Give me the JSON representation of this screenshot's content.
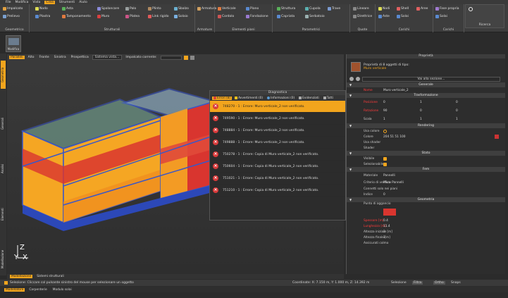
{
  "menu": [
    "File",
    "Modifica",
    "Vista",
    "Crea",
    "Strumenti",
    "Aiuto"
  ],
  "menu_active_index": 3,
  "ribbon": {
    "groups": [
      {
        "title": "Geometrico",
        "items": [
          "Impalcato",
          "Prelievo"
        ]
      },
      {
        "title": "Strutturali",
        "items": [
          "Nodo",
          "Asta",
          "Plastra",
          "Tamponamento",
          "Spalancare",
          "Palo",
          "Muro",
          "Plinto",
          "Platea",
          "Link rigido",
          "Sbalzo",
          "Solaio"
        ]
      },
      {
        "title": "Armature",
        "items": [
          "Armatura"
        ]
      },
      {
        "title": "Elementi piani",
        "items": [
          "Verticale",
          "Piano",
          "Cordolo",
          "Fondazione"
        ]
      },
      {
        "title": "Parametrici",
        "items": [
          "Struttura",
          "Cupola",
          "Trave",
          "Capriata",
          "Serbatoio"
        ]
      },
      {
        "title": "Quote",
        "items": [
          "Lineare",
          "Direttrice"
        ]
      },
      {
        "title": "Carichi",
        "items": [
          "Nodi",
          "Shell",
          "Aree",
          "Aste",
          "Solai"
        ]
      },
      {
        "title": "Carichi",
        "items": [
          "Fase propria",
          "Solai"
        ]
      },
      {
        "title": "Ricerca",
        "items": []
      }
    ]
  },
  "left_button": {
    "label": "Modifica"
  },
  "left_tabs": [
    "Geometria",
    "Generali",
    "Analisi",
    "Elementi",
    "Modellazione"
  ],
  "viewport_toolbar": {
    "views": [
      "Paralleli",
      "Alto",
      "Fronte",
      "Sinistra",
      "Prospettica"
    ],
    "active_view": 0,
    "system_combo": "Sistema vista...",
    "impalcato_label": "Impalcato corrente:"
  },
  "axes": {
    "x": "X",
    "y": "Y",
    "z": "Z"
  },
  "diagnostics": {
    "title": "Diagnostica",
    "tabs": [
      {
        "label": "Errori (8)",
        "icon": "error-icon"
      },
      {
        "label": "Avvertimenti (0)",
        "icon": "warning-icon"
      },
      {
        "label": "Informazioni (0)",
        "icon": "info-icon"
      },
      {
        "label": "Evidenziati",
        "icon": "highlight-icon"
      },
      {
        "label": "Tutti",
        "icon": "all-icon"
      }
    ],
    "active_tab": 0,
    "rows": [
      "748270 - 1 : Errore: Muro verticale_2 non verificato.",
      "749590 - 1 : Errore: Muro verticale_2 non verificato.",
      "748884 - 1 : Errore: Muro verticale_2 non verificato.",
      "749888 - 1 : Errore: Muro verticale_2 non verificato.",
      "750278 - 1 : Errore: Copia di Muro verticale_2 non verificato.",
      "750604 - 1 : Errore: Copia di Muro verticale_2 non verificato.",
      "751021 - 1 : Errore: Copia di Muro verticale_2 non verificato.",
      "751210 - 1 : Errore: Copia di Muro verticale_2 non verificato."
    ],
    "selected_row": 0
  },
  "properties": {
    "title": "Proprietà",
    "header_line1": "Proprietà di 8 oggetti di tipo:",
    "header_line2": "Muro verticale",
    "goto_combo": "Vai alla sezione...",
    "sections": {
      "generale": "Generale",
      "trasformazione": "Trasformazione",
      "rendering": "Rendering",
      "stato": "Stato",
      "fem": "Fem",
      "geometria": "Geometria"
    },
    "nome_label": "Nome",
    "nome_value": "Muro verticale_2",
    "posizione_label": "Posizione",
    "posizione_values": [
      "0",
      "1",
      "0"
    ],
    "rotazione_label": "Rotazione",
    "rotazione_values": [
      "90",
      "0",
      "0"
    ],
    "scala_label": "Scala",
    "scala_values": [
      "1",
      "1",
      "1"
    ],
    "usa_colore_label": "Usa colore",
    "colore_label": "Colore",
    "colore_value": "204 51 51 100",
    "usa_shader_label": "Usa shader",
    "shader_label": "Shader",
    "visibile_label": "Visibile",
    "selezionabile_label": "Selezionabile",
    "materiale_label": "Materiale",
    "materiale_value": "Pannelli",
    "criterio_label": "Criterio di verifica",
    "criterio_value": "Muro Pannelli",
    "connetti_label": "Connetti solo nei piani",
    "indice_label": "Indice",
    "indice_value": "0",
    "punto_label": "Punto di aggancio",
    "spessore_label": "Spessore [m]",
    "spessore_value": "0.4",
    "lunghezza_label": "Lunghezza [m]",
    "lunghezza_value": "11.4",
    "altezza_iniz_label": "Altezza iniziale [m]",
    "altezza_iniz_value": "3",
    "altezza_fin_label": "Altezza finale [m]",
    "altezza_fin_value": "3",
    "assicurati_label": "Assicurati colmo"
  },
  "view_tabs": [
    "Modellazione",
    "Sistemi strutturali"
  ],
  "status": {
    "selezione": "Selezione: Cliccare col pulsante sinistro del mouse per selezionare un oggetto",
    "coordinate": "Coordinate: X: 7.150 m, Y: 1.000 m, Z: 14.392 m",
    "selezione_right": "Selezione",
    "filtra": "Filtra",
    "ortho": "Ortho",
    "snaps": "Snaps"
  },
  "bottom_tabs": [
    "Modellatore",
    "Carpenterie",
    "Modulo solai"
  ],
  "colors": {
    "accent": "#f2a51d",
    "error": "#d93a3a",
    "wall_orange": "#f5a623",
    "wall_red": "#d9352f",
    "slab_blue": "#3a57c8",
    "selected_color": "#cc3333"
  }
}
